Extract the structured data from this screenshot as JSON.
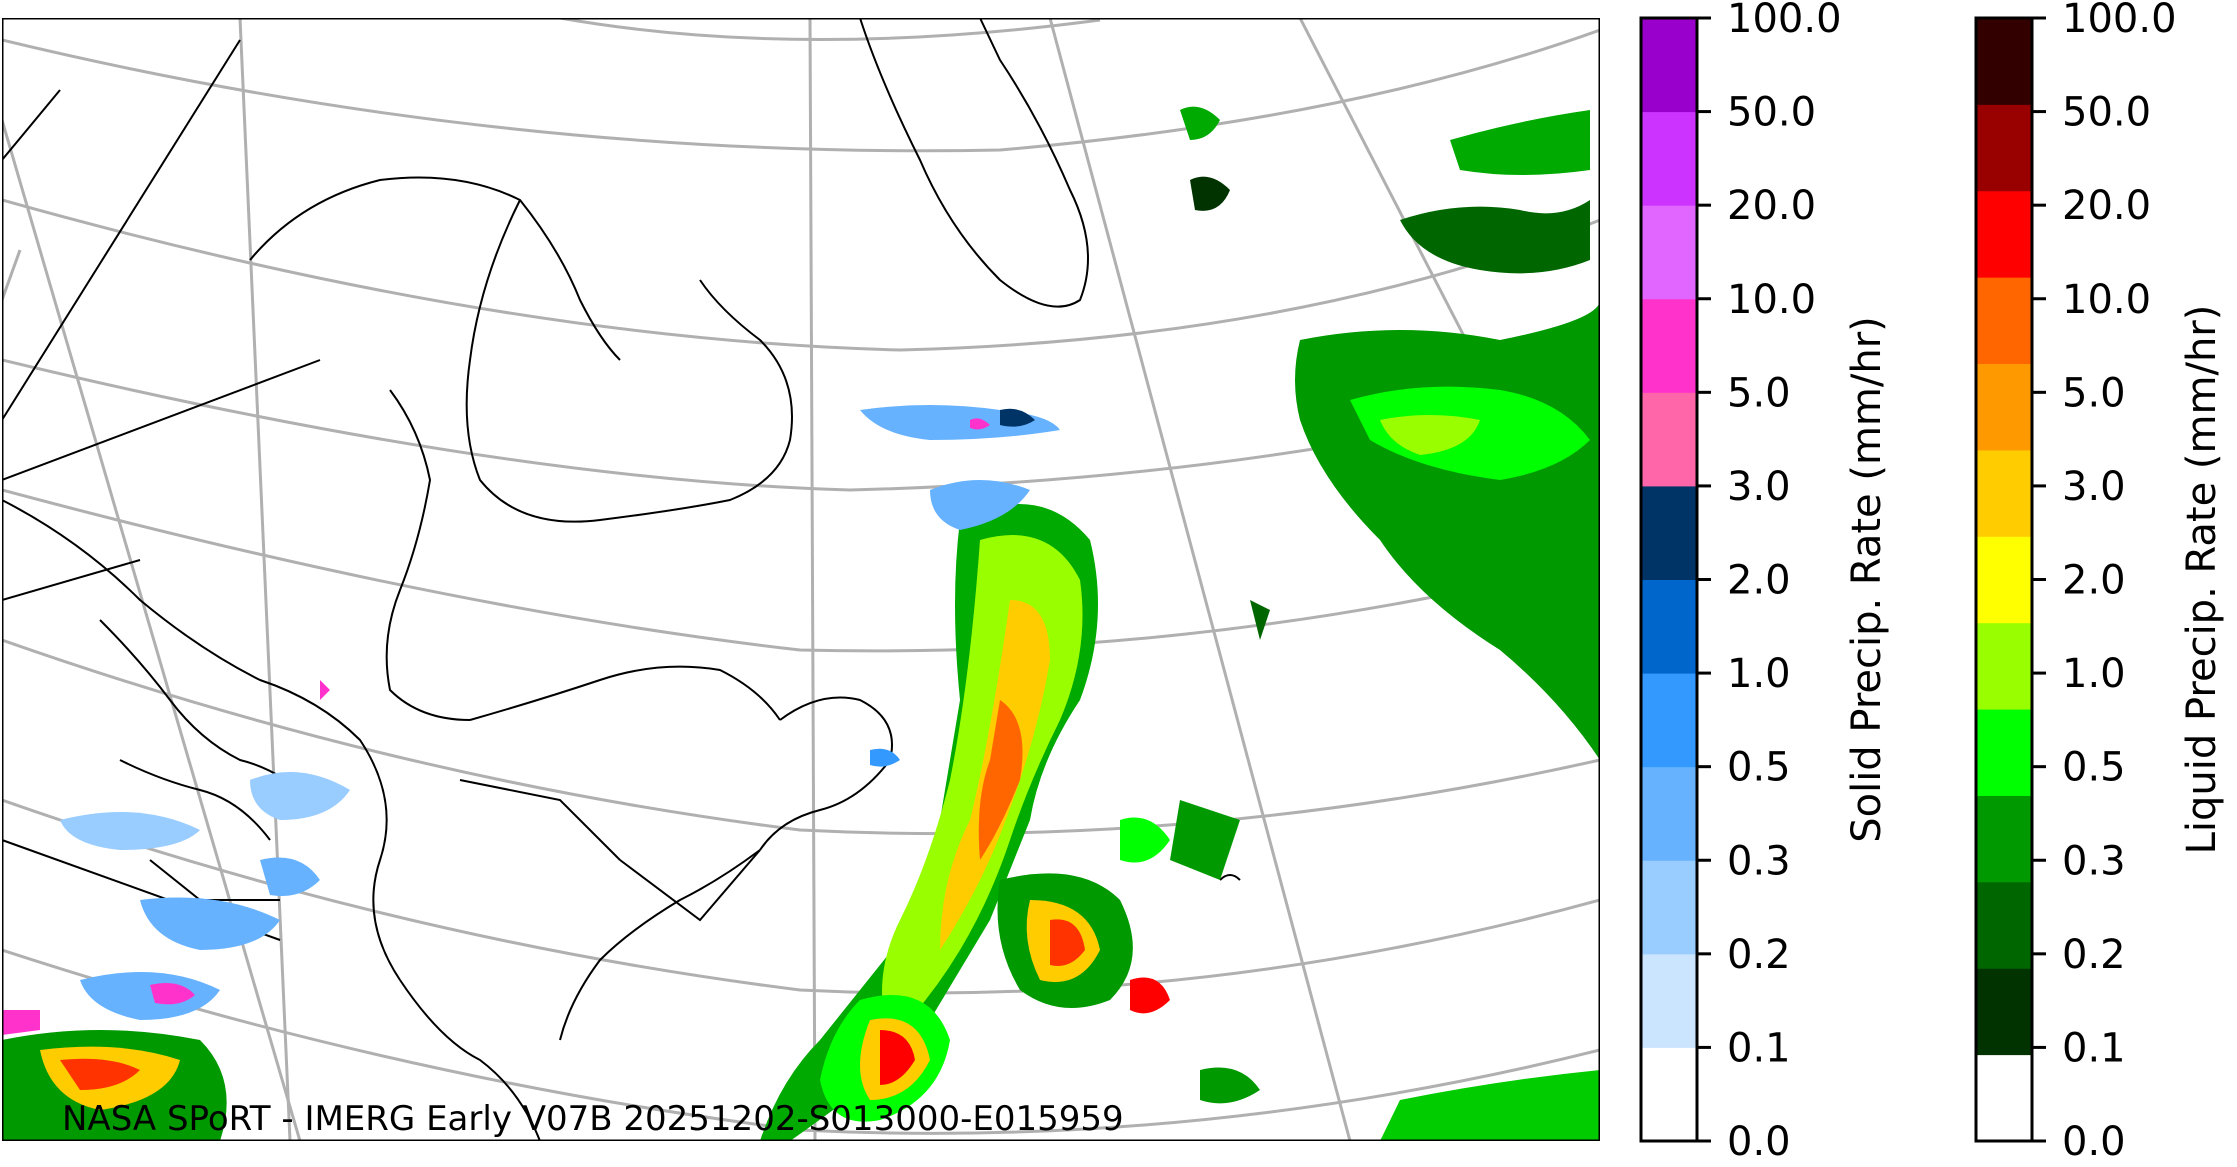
{
  "credit": "NASA SPoRT - IMERG Early V07B 20251202-S013000-E015959",
  "colorbars": [
    {
      "id": "solid",
      "title": "Solid Precip. Rate (mm/hr)",
      "ticks": [
        "0.0",
        "0.1",
        "0.2",
        "0.3",
        "0.5",
        "1.0",
        "2.0",
        "3.0",
        "5.0",
        "10.0",
        "20.0",
        "50.0",
        "100.0"
      ],
      "colors": [
        "#ffffff",
        "#cce5ff",
        "#99ccff",
        "#66b2ff",
        "#3399ff",
        "#0066cc",
        "#003366",
        "#ff66aa",
        "#ff33cc",
        "#e066ff",
        "#cc33ff",
        "#9900cc"
      ]
    },
    {
      "id": "liquid",
      "title": "Liquid Precip. Rate (mm/hr)",
      "ticks": [
        "0.0",
        "0.1",
        "0.2",
        "0.3",
        "0.5",
        "1.0",
        "2.0",
        "3.0",
        "5.0",
        "10.0",
        "20.0",
        "50.0",
        "100.0"
      ],
      "colors": [
        "#ffffff",
        "#003300",
        "#006600",
        "#009900",
        "#00ff00",
        "#99ff00",
        "#ffff00",
        "#ffcc00",
        "#ff9900",
        "#ff6600",
        "#ff0000",
        "#990000",
        "#330000"
      ]
    }
  ],
  "colors": {
    "coastline": "#000000",
    "graticule": "#b0b0b0",
    "frame": "#000000"
  }
}
